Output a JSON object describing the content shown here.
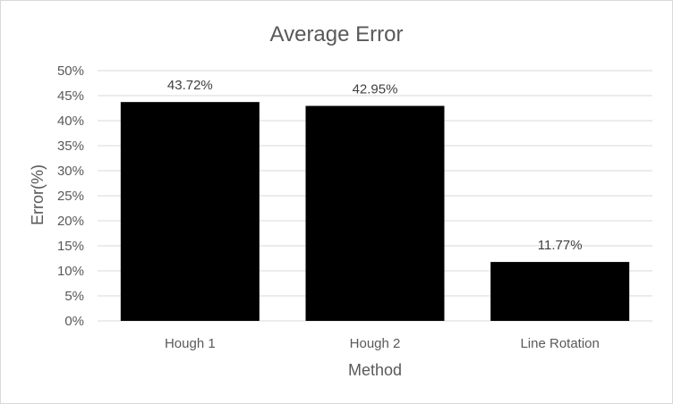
{
  "chart_data": {
    "type": "bar",
    "title": "Average Error",
    "xlabel": "Method",
    "ylabel": "Error(%)",
    "categories": [
      "Hough 1",
      "Hough 2",
      "Line Rotation"
    ],
    "values": [
      43.72,
      42.95,
      11.77
    ],
    "data_labels": [
      "43.72%",
      "42.95%",
      "11.77%"
    ],
    "ylim": [
      0,
      50
    ],
    "y_ticks": [
      0,
      5,
      10,
      15,
      20,
      25,
      30,
      35,
      40,
      45,
      50
    ],
    "y_tick_labels": [
      "0%",
      "5%",
      "10%",
      "15%",
      "20%",
      "25%",
      "30%",
      "35%",
      "40%",
      "45%",
      "50%"
    ],
    "grid": true,
    "legend": "none",
    "bar_color": "#000000"
  }
}
